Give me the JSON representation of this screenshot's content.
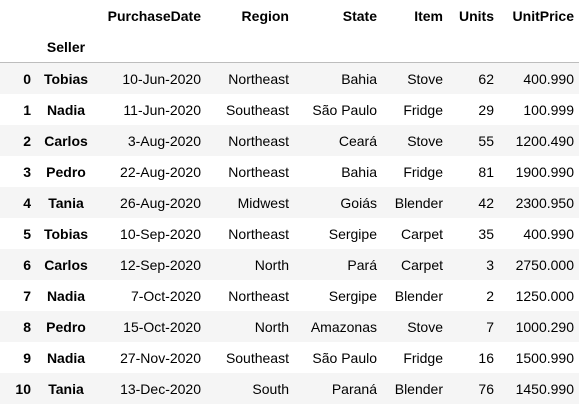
{
  "table": {
    "columns": [
      "PurchaseDate",
      "Region",
      "State",
      "Item",
      "Units",
      "UnitPrice"
    ],
    "index_name": "Seller",
    "rows": [
      {
        "idx": "0",
        "seller": "Tobias",
        "date": "10-Jun-2020",
        "region": "Northeast",
        "state": "Bahia",
        "item": "Stove",
        "units": "62",
        "price": "400.990"
      },
      {
        "idx": "1",
        "seller": "Nadia",
        "date": "11-Jun-2020",
        "region": "Southeast",
        "state": "São Paulo",
        "item": "Fridge",
        "units": "29",
        "price": "100.999"
      },
      {
        "idx": "2",
        "seller": "Carlos",
        "date": "3-Aug-2020",
        "region": "Northeast",
        "state": "Ceará",
        "item": "Stove",
        "units": "55",
        "price": "1200.490"
      },
      {
        "idx": "3",
        "seller": "Pedro",
        "date": "22-Aug-2020",
        "region": "Northeast",
        "state": "Bahia",
        "item": "Fridge",
        "units": "81",
        "price": "1900.990"
      },
      {
        "idx": "4",
        "seller": "Tania",
        "date": "26-Aug-2020",
        "region": "Midwest",
        "state": "Goiás",
        "item": "Blender",
        "units": "42",
        "price": "2300.950"
      },
      {
        "idx": "5",
        "seller": "Tobias",
        "date": "10-Sep-2020",
        "region": "Northeast",
        "state": "Sergipe",
        "item": "Carpet",
        "units": "35",
        "price": "400.990"
      },
      {
        "idx": "6",
        "seller": "Carlos",
        "date": "12-Sep-2020",
        "region": "North",
        "state": "Pará",
        "item": "Carpet",
        "units": "3",
        "price": "2750.000"
      },
      {
        "idx": "7",
        "seller": "Nadia",
        "date": "7-Oct-2020",
        "region": "Northeast",
        "state": "Sergipe",
        "item": "Blender",
        "units": "2",
        "price": "1250.000"
      },
      {
        "idx": "8",
        "seller": "Pedro",
        "date": "15-Oct-2020",
        "region": "North",
        "state": "Amazonas",
        "item": "Stove",
        "units": "7",
        "price": "1000.290"
      },
      {
        "idx": "9",
        "seller": "Nadia",
        "date": "27-Nov-2020",
        "region": "Southeast",
        "state": "São Paulo",
        "item": "Fridge",
        "units": "16",
        "price": "1500.990"
      },
      {
        "idx": "10",
        "seller": "Tania",
        "date": "13-Dec-2020",
        "region": "South",
        "state": "Paraná",
        "item": "Blender",
        "units": "76",
        "price": "1450.990"
      }
    ]
  }
}
